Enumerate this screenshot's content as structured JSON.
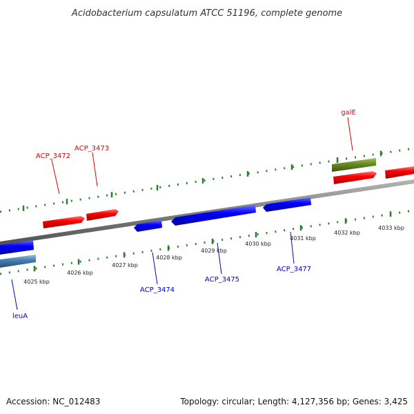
{
  "title": "Acidobacterium capsulatum ATCC 51196, complete genome",
  "footer": {
    "accession": "Accession: NC_012483",
    "summary": "Topology: circular; Length: 4,127,356 bp; Genes: 3,425"
  },
  "colors": {
    "forward_gene": "#ff0000",
    "reverse_gene": "#0000ff",
    "rna_gene": "#6b8e23",
    "other_gene": "#4682b4",
    "ticks": "#2e7d32",
    "backbone": "#808080",
    "forward_label": "#dd0000",
    "reverse_label": "#0000cc"
  },
  "scale_labels": [
    "4025 kbp",
    "4026 kbp",
    "4027 kbp",
    "4028 kbp",
    "4029 kbp",
    "4030 kbp",
    "4031 kbp",
    "4032 kbp",
    "4033 kbp"
  ],
  "gene_labels": {
    "forward": [
      "ACP_3472",
      "ACP_3473",
      "galE"
    ],
    "reverse": [
      "leuA",
      "ACP_3474",
      "ACP_3475",
      "ACP_3477"
    ]
  }
}
